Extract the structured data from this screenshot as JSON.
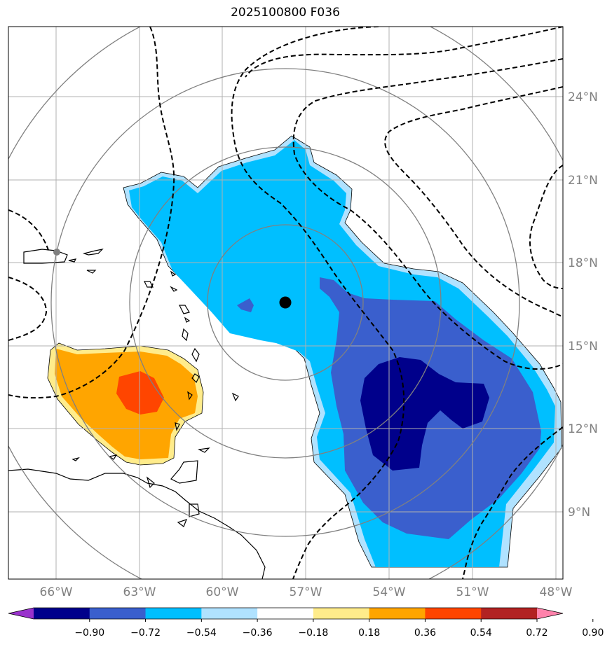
{
  "title": "2025100800 F036",
  "lon_ticks": [
    "66°W",
    "63°W",
    "60°W",
    "57°W",
    "54°W",
    "51°W",
    "48°W"
  ],
  "lat_ticks": [
    "24°N",
    "21°N",
    "18°N",
    "15°N",
    "12°N",
    "9°N"
  ],
  "colorbar": {
    "ticks": [
      "−0.90",
      "−0.72",
      "−0.54",
      "−0.36",
      "−0.18",
      "0.18",
      "0.36",
      "0.54",
      "0.72",
      "0.90"
    ],
    "colors": [
      "#9932cc",
      "#00008b",
      "#3a5fcd",
      "#00bfff",
      "#b0e2ff",
      "#ffffff",
      "#ffec8b",
      "#ffa500",
      "#ff4500",
      "#b22222",
      "#ff82ab"
    ]
  },
  "colors": {
    "grid": "#b0b0b0",
    "range_rings": "#808080",
    "coast": "#000000",
    "contour": "#000000",
    "storm_center": "#000000"
  }
}
